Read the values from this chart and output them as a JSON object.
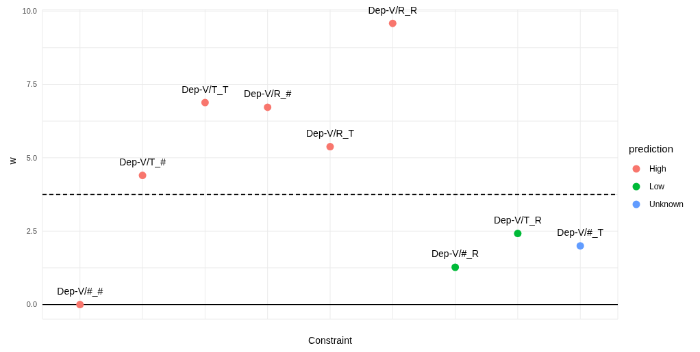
{
  "chart_data": {
    "type": "scatter",
    "xlabel": "Constraint",
    "ylabel": "w",
    "legend_title": "prediction",
    "categories": [
      null,
      null,
      null,
      null,
      null,
      null,
      null,
      null,
      null
    ],
    "series": [
      {
        "name": "High",
        "color": "#f8766d",
        "values": [
          0.0,
          4.4,
          6.88,
          6.72,
          5.38,
          9.58,
          null,
          null,
          null
        ],
        "value_labels": [
          "Dep-V/#_#",
          "Dep-V/T_#",
          "Dep-V/T_T",
          "Dep-V/R_#",
          "Dep-V/R_T",
          "Dep-V/R_R",
          null,
          null,
          null
        ]
      },
      {
        "name": "Low",
        "color": "#00ba38",
        "values": [
          null,
          null,
          null,
          null,
          null,
          null,
          1.27,
          2.42,
          null
        ],
        "value_labels": [
          null,
          null,
          null,
          null,
          null,
          null,
          "Dep-V/#_R",
          "Dep-V/T_R",
          null
        ]
      },
      {
        "name": "Unknown",
        "color": "#619cff",
        "values": [
          null,
          null,
          null,
          null,
          null,
          null,
          null,
          null,
          2.0
        ],
        "value_labels": [
          null,
          null,
          null,
          null,
          null,
          null,
          null,
          null,
          "Dep-V/#_T"
        ]
      }
    ],
    "ylim": [
      -0.5,
      10.05
    ],
    "yticks": [
      {
        "value": 0,
        "label": "0.0"
      },
      {
        "value": 1.25,
        "label": null
      },
      2.5,
      {
        "value": 3.75,
        "label": null
      },
      {
        "value": 5,
        "label": "5.0"
      },
      {
        "value": 6.25,
        "label": null
      },
      7.5,
      {
        "value": 8.75,
        "label": null
      },
      {
        "value": 10,
        "label": "10.0"
      }
    ],
    "ref_lines": [
      {
        "axis": "y",
        "value": 0,
        "color": "#000000",
        "line_style": "solid"
      },
      {
        "axis": "y",
        "value": 3.75,
        "color": "#000000",
        "line_style": "dashed"
      }
    ],
    "grid": true,
    "legend": "right",
    "marker": "circle"
  }
}
